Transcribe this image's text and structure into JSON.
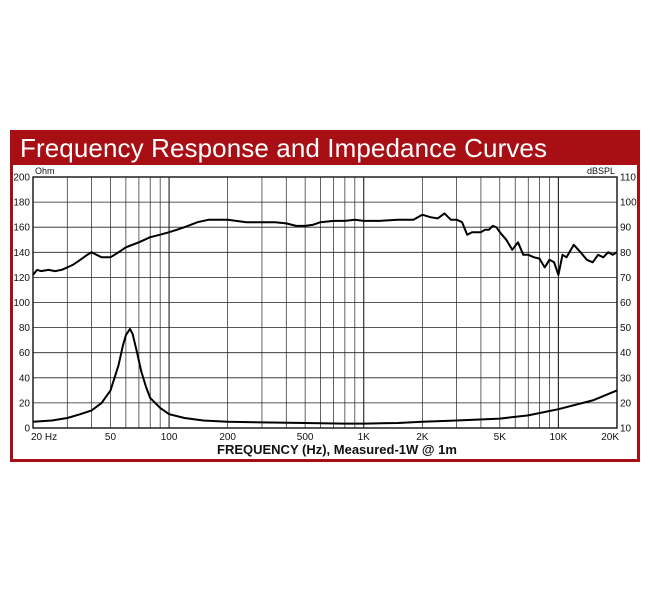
{
  "chart_data": {
    "type": "line",
    "title": "Frequency Response and Impedance Curves",
    "xlabel": "FREQUENCY (Hz), Measured-1W @ 1m",
    "y_left_label": "Ohm",
    "y_right_label": "dBSPL",
    "x_scale": "log",
    "xlim": [
      20,
      20000
    ],
    "ylim_left": [
      0,
      200
    ],
    "ylim_right": [
      10,
      110
    ],
    "x_tick_values": [
      20,
      50,
      100,
      200,
      500,
      1000,
      2000,
      5000,
      10000,
      20000
    ],
    "x_tick_labels": [
      "20 Hz",
      "50",
      "100",
      "200",
      "500",
      "1K",
      "2K",
      "5K",
      "10K",
      "20K"
    ],
    "y_left_ticks": [
      0,
      20,
      40,
      60,
      80,
      100,
      120,
      140,
      160,
      180,
      200
    ],
    "y_right_ticks": [
      10,
      20,
      30,
      40,
      50,
      60,
      70,
      80,
      90,
      100,
      110
    ],
    "grid": true,
    "series": [
      {
        "axis": "right",
        "x": [
          20,
          21,
          22,
          24,
          26,
          28,
          30,
          32,
          35,
          38,
          40,
          45,
          50,
          55,
          60,
          70,
          80,
          90,
          100,
          110,
          120,
          140,
          160,
          200,
          250,
          300,
          350,
          400,
          450,
          500,
          550,
          600,
          700,
          800,
          900,
          1000,
          1200,
          1500,
          1800,
          2000,
          2200,
          2400,
          2600,
          2800,
          3000,
          3200,
          3400,
          3600,
          3800,
          4000,
          4200,
          4400,
          4600,
          4800,
          5000,
          5400,
          5800,
          6200,
          6600,
          7000,
          7500,
          8000,
          8500,
          9000,
          9500,
          10000,
          10500,
          11000,
          12000,
          13000,
          14000,
          15000,
          16000,
          17000,
          18000,
          19000,
          20000
        ],
        "values": [
          71,
          73,
          72.5,
          73,
          72.5,
          73,
          74,
          75,
          77,
          79,
          80,
          78,
          78,
          80,
          82,
          84,
          86,
          87,
          88,
          89,
          90,
          92,
          93,
          93,
          92,
          92,
          92,
          91.5,
          90.5,
          90.5,
          91,
          92,
          92.5,
          92.5,
          93,
          92.5,
          92.5,
          93,
          93,
          95,
          94,
          93.5,
          95.5,
          93,
          93,
          92,
          87,
          88,
          88,
          88,
          89,
          89,
          90.5,
          90,
          88,
          85,
          81,
          84,
          79,
          79,
          78,
          77.5,
          74,
          77,
          76,
          71,
          79,
          78,
          83,
          80,
          77,
          76,
          79,
          78,
          80,
          79,
          80
        ]
      },
      {
        "axis": "left",
        "x": [
          20,
          25,
          30,
          35,
          40,
          45,
          50,
          55,
          58,
          60,
          63,
          65,
          68,
          72,
          76,
          80,
          90,
          100,
          120,
          150,
          200,
          300,
          500,
          800,
          1000,
          1500,
          2000,
          3000,
          5000,
          7000,
          10000,
          15000,
          20000
        ],
        "values": [
          5,
          6,
          8,
          11,
          14,
          20,
          30,
          50,
          66,
          74,
          79,
          75,
          62,
          45,
          33,
          24,
          16,
          11,
          8,
          6,
          5,
          4.5,
          4,
          3.5,
          3.5,
          4,
          5,
          6,
          7.5,
          10,
          15,
          22,
          30
        ]
      }
    ]
  }
}
